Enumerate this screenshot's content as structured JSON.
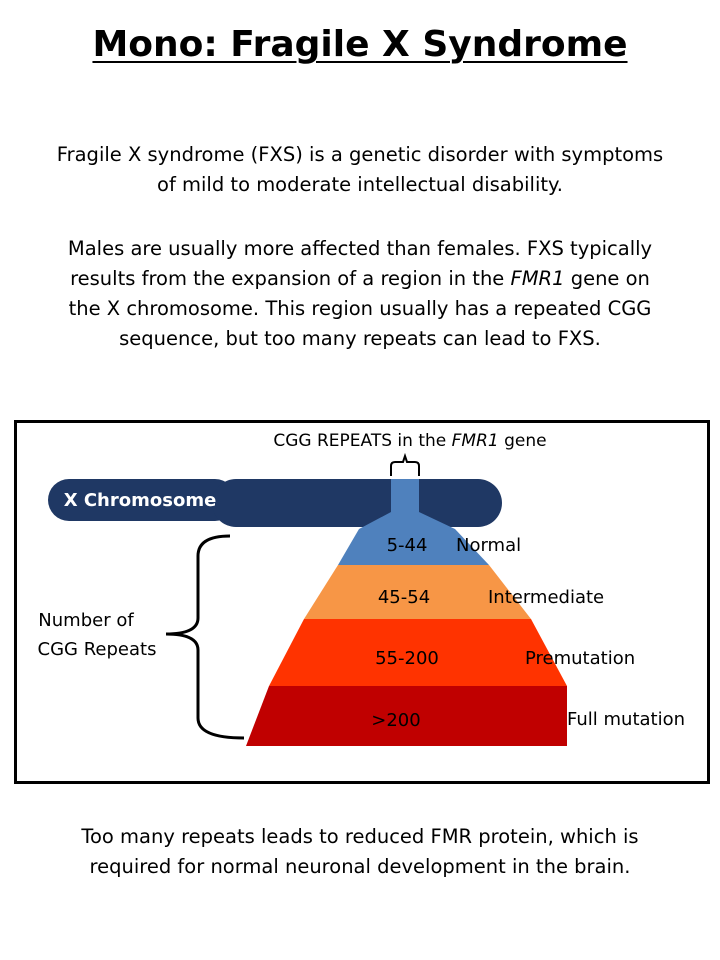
{
  "title": "Mono: Fragile X Syndrome",
  "intro": {
    "line1": "Fragile X syndrome (FXS) is a genetic disorder with symptoms",
    "line2": "of mild to moderate intellectual disability."
  },
  "details": {
    "line1": "Males are usually more affected than females. FXS typically",
    "line2_pre": "results from the expansion of a region in the ",
    "gene": "FMR1",
    "line2_post": " gene on",
    "line3": "the X chromosome. This region usually has a repeated CGG",
    "line4": "sequence, but too many repeats can lead to FXS."
  },
  "diagram": {
    "header_pre": "CGG REPEATS in the ",
    "header_gene": "FMR1",
    "header_post": " gene",
    "chromosome_label": "X Chromosome",
    "axis_label_line1": "Number of",
    "axis_label_line2": "CGG Repeats",
    "levels": [
      {
        "range": "5-44",
        "category": "Normal",
        "color": "#4F81BD"
      },
      {
        "range": "45-54",
        "category": "Intermediate",
        "color": "#F79646"
      },
      {
        "range": "55-200",
        "category": "Premutation",
        "color": "#FF3300"
      },
      {
        "range": ">200",
        "category": "Full mutation",
        "color": "#C00000"
      }
    ],
    "chromosome_color": "#1F3864"
  },
  "conclusion": {
    "line1": "Too many repeats leads to reduced FMR protein, which is",
    "line2": "required for normal neuronal development in the brain."
  }
}
